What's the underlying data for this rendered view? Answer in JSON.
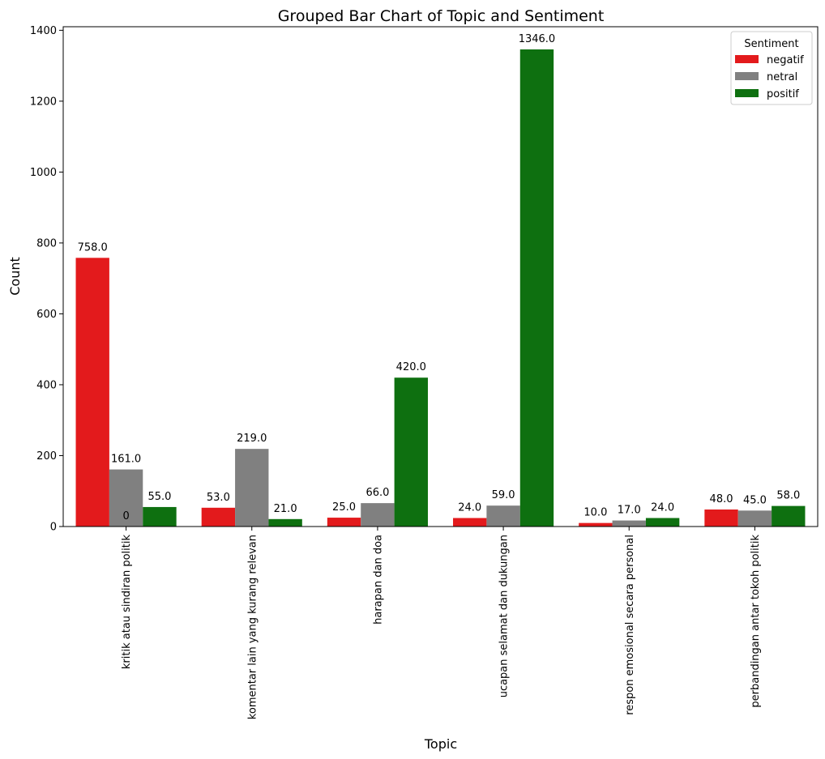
{
  "chart_data": {
    "type": "bar",
    "title": "Grouped Bar Chart of Topic and Sentiment",
    "xlabel": "Topic",
    "ylabel": "Count",
    "ylim": [
      0,
      1410
    ],
    "yticks": [
      0,
      200,
      400,
      600,
      800,
      1000,
      1200,
      1400
    ],
    "categories": [
      "kritik atau sindiran politik",
      "komentar lain yang kurang relevan",
      "harapan dan doa",
      "ucapan selamat dan dukungan",
      "respon emosional secara personal",
      "perbandingan antar tokoh politik"
    ],
    "series": [
      {
        "name": "negatif",
        "color": "#e31a1c",
        "values": [
          758.0,
          53.0,
          25.0,
          24.0,
          10.0,
          48.0
        ]
      },
      {
        "name": "netral",
        "color": "#808080",
        "values": [
          161.0,
          219.0,
          66.0,
          59.0,
          17.0,
          45.0
        ]
      },
      {
        "name": "positif",
        "color": "#0e7010",
        "values": [
          55.0,
          21.0,
          420.0,
          1346.0,
          24.0,
          58.0
        ]
      }
    ],
    "value_labels": [
      [
        "758.0",
        "53.0",
        "25.0",
        "24.0",
        "10.0",
        "48.0"
      ],
      [
        "161.0",
        "219.0",
        "66.0",
        "59.0",
        "17.0",
        "45.0"
      ],
      [
        "55.0",
        "21.0",
        "420.0",
        "1346.0",
        "24.0",
        "58.0"
      ]
    ],
    "annotations": [
      {
        "text": "0",
        "category_index": 0,
        "series_index": 1,
        "y": 0
      }
    ],
    "legend": {
      "title": "Sentiment",
      "position": "top-right"
    },
    "grid": false
  }
}
